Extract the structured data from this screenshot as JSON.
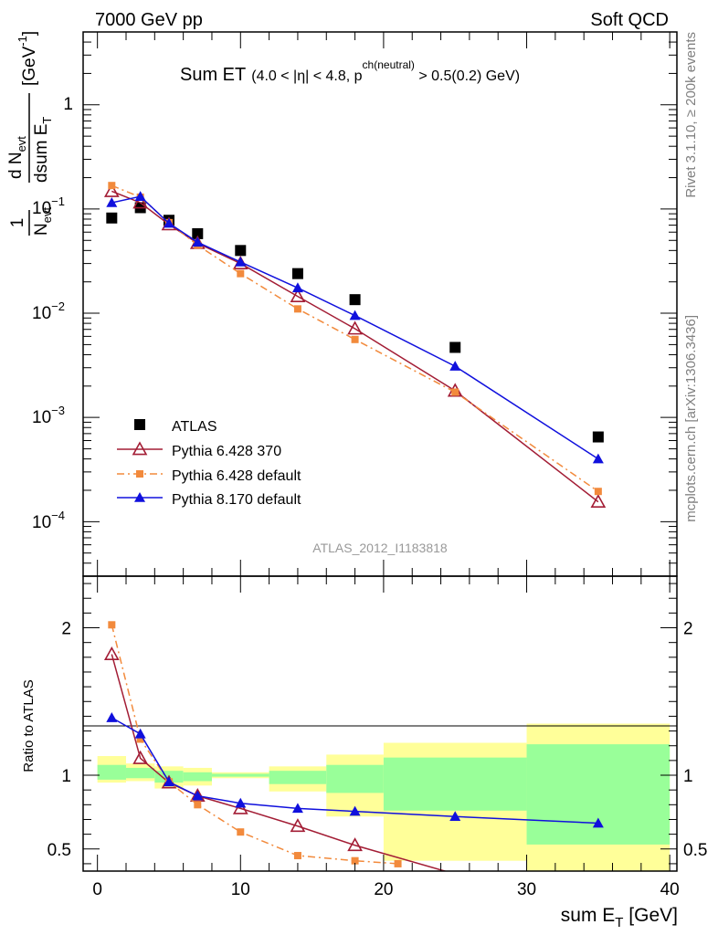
{
  "header": {
    "left": "7000 GeV pp",
    "right": "Soft QCD"
  },
  "side_labels": {
    "rivet": "Rivet 3.1.10, ≥ 200k events",
    "mcplots": "mcplots.cern.ch [arXiv:1306.3436]"
  },
  "chart_data": [
    {
      "type": "scatter",
      "panel": "main",
      "title": {
        "main": "Sum ET",
        "cut_pre": "(4.0 < |",
        "eta": "η",
        "cut_mid": "| < 4.8, p",
        "superscript": "ch(neutral)",
        "cut_post": " > 0.5(0.2) GeV)"
      },
      "ylabel": {
        "frac_num": "1",
        "frac_den": "N",
        "frac_den_sub": "evt",
        "d_num": "d N",
        "d_num_sub": "evt",
        "d_den": "dsum E",
        "d_den_sub": "T",
        "unit": "[GeV",
        "unit_sup": "-1",
        "unit_close": "]"
      },
      "yscale": "log",
      "ylim": [
        3e-05,
        5
      ],
      "yticklabels": [
        {
          "value": 1,
          "base": "1",
          "exp": ""
        },
        {
          "value": 0.1,
          "base": "10",
          "exp": "−1"
        },
        {
          "value": 0.01,
          "base": "10",
          "exp": "−2"
        },
        {
          "value": 0.001,
          "base": "10",
          "exp": "−3"
        },
        {
          "value": 0.0001,
          "base": "10",
          "exp": "−4"
        }
      ],
      "watermark": "ATLAS_2012_I1183818",
      "legend_position": "bottom-left",
      "series": [
        {
          "name": "ATLAS",
          "color": "#000000",
          "marker": "square",
          "line": "none",
          "x": [
            1,
            3,
            5,
            7,
            10,
            14,
            18,
            25,
            35
          ],
          "y": [
            0.082,
            0.103,
            0.078,
            0.058,
            0.04,
            0.024,
            0.0135,
            0.0047,
            0.00065
          ]
        },
        {
          "name": "Pythia 6.428 370",
          "color": "#a31d35",
          "marker": "open-triangle",
          "line": "solid",
          "x": [
            1,
            3,
            5,
            7,
            10,
            14,
            18,
            25,
            35
          ],
          "y": [
            0.148,
            0.115,
            0.071,
            0.047,
            0.03,
            0.0145,
            0.0071,
            0.0018,
            0.000155
          ]
        },
        {
          "name": "Pythia 6.428 default",
          "color": "#f28a3c",
          "marker": "square-small",
          "line": "dashdot",
          "x": [
            1,
            3,
            5,
            7,
            10,
            14,
            18,
            25,
            35
          ],
          "y": [
            0.168,
            0.13,
            0.074,
            0.045,
            0.024,
            0.011,
            0.0056,
            0.00175,
            0.000195
          ]
        },
        {
          "name": "Pythia 8.170 default",
          "color": "#1010dd",
          "marker": "triangle",
          "line": "solid",
          "x": [
            1,
            3,
            5,
            7,
            10,
            14,
            18,
            25,
            35
          ],
          "y": [
            0.115,
            0.132,
            0.073,
            0.048,
            0.031,
            0.0175,
            0.0095,
            0.0031,
            0.0004
          ]
        }
      ]
    },
    {
      "type": "line",
      "panel": "ratio",
      "ylabel": "Ratio to ATLAS",
      "xlabel_main": "sum E",
      "xlabel_sub": "T",
      "xlabel_unit": " [GeV]",
      "xlim": [
        -1,
        40.5
      ],
      "ylim": [
        0.35,
        2.35
      ],
      "xticks": [
        0,
        10,
        20,
        30,
        40
      ],
      "yticks": [
        0.5,
        1,
        2
      ],
      "bands": [
        {
          "x0": 0,
          "x1": 2,
          "in_lo": 0.97,
          "in_hi": 1.07,
          "out_lo": 0.95,
          "out_hi": 1.13
        },
        {
          "x0": 2,
          "x1": 4,
          "in_lo": 0.98,
          "in_hi": 1.05,
          "out_lo": 0.96,
          "out_hi": 1.08
        },
        {
          "x0": 4,
          "x1": 6,
          "in_lo": 0.95,
          "in_hi": 1.03,
          "out_lo": 0.91,
          "out_hi": 1.06
        },
        {
          "x0": 6,
          "x1": 8,
          "in_lo": 0.96,
          "in_hi": 1.02,
          "out_lo": 0.93,
          "out_hi": 1.05
        },
        {
          "x0": 8,
          "x1": 12,
          "in_lo": 0.99,
          "in_hi": 1.01,
          "out_lo": 0.98,
          "out_hi": 1.02
        },
        {
          "x0": 12,
          "x1": 16,
          "in_lo": 0.94,
          "in_hi": 1.03,
          "out_lo": 0.89,
          "out_hi": 1.06
        },
        {
          "x0": 16,
          "x1": 20,
          "in_lo": 0.88,
          "in_hi": 1.07,
          "out_lo": 0.72,
          "out_hi": 1.14
        },
        {
          "x0": 20,
          "x1": 30,
          "in_lo": 0.76,
          "in_hi": 1.12,
          "out_lo": 0.42,
          "out_hi": 1.22
        },
        {
          "x0": 30,
          "x1": 40,
          "in_lo": 0.53,
          "in_hi": 1.21,
          "out_lo": 0.33,
          "out_hi": 1.35
        }
      ],
      "series": [
        {
          "name": "Pythia 6.428 370",
          "color": "#a31d35",
          "marker": "open-triangle",
          "line": "solid",
          "x": [
            1,
            3,
            5,
            7,
            10,
            14,
            18,
            25
          ],
          "y": [
            1.82,
            1.115,
            0.95,
            0.86,
            0.775,
            0.655,
            0.525,
            0.33
          ]
        },
        {
          "name": "Pythia 6.428 default",
          "color": "#f28a3c",
          "marker": "square-small",
          "line": "dashdot",
          "x": [
            1,
            3,
            5,
            7,
            10,
            14,
            18,
            21
          ],
          "y": [
            2.02,
            1.245,
            0.955,
            0.8,
            0.615,
            0.455,
            0.42,
            0.4
          ]
        },
        {
          "name": "Pythia 8.170 default",
          "color": "#1010dd",
          "marker": "triangle",
          "line": "solid",
          "x": [
            1,
            3,
            5,
            7,
            10,
            14,
            18,
            25,
            35
          ],
          "y": [
            1.39,
            1.28,
            0.955,
            0.86,
            0.81,
            0.775,
            0.755,
            0.72,
            0.675
          ],
          "err_last": 0.025
        }
      ]
    }
  ]
}
